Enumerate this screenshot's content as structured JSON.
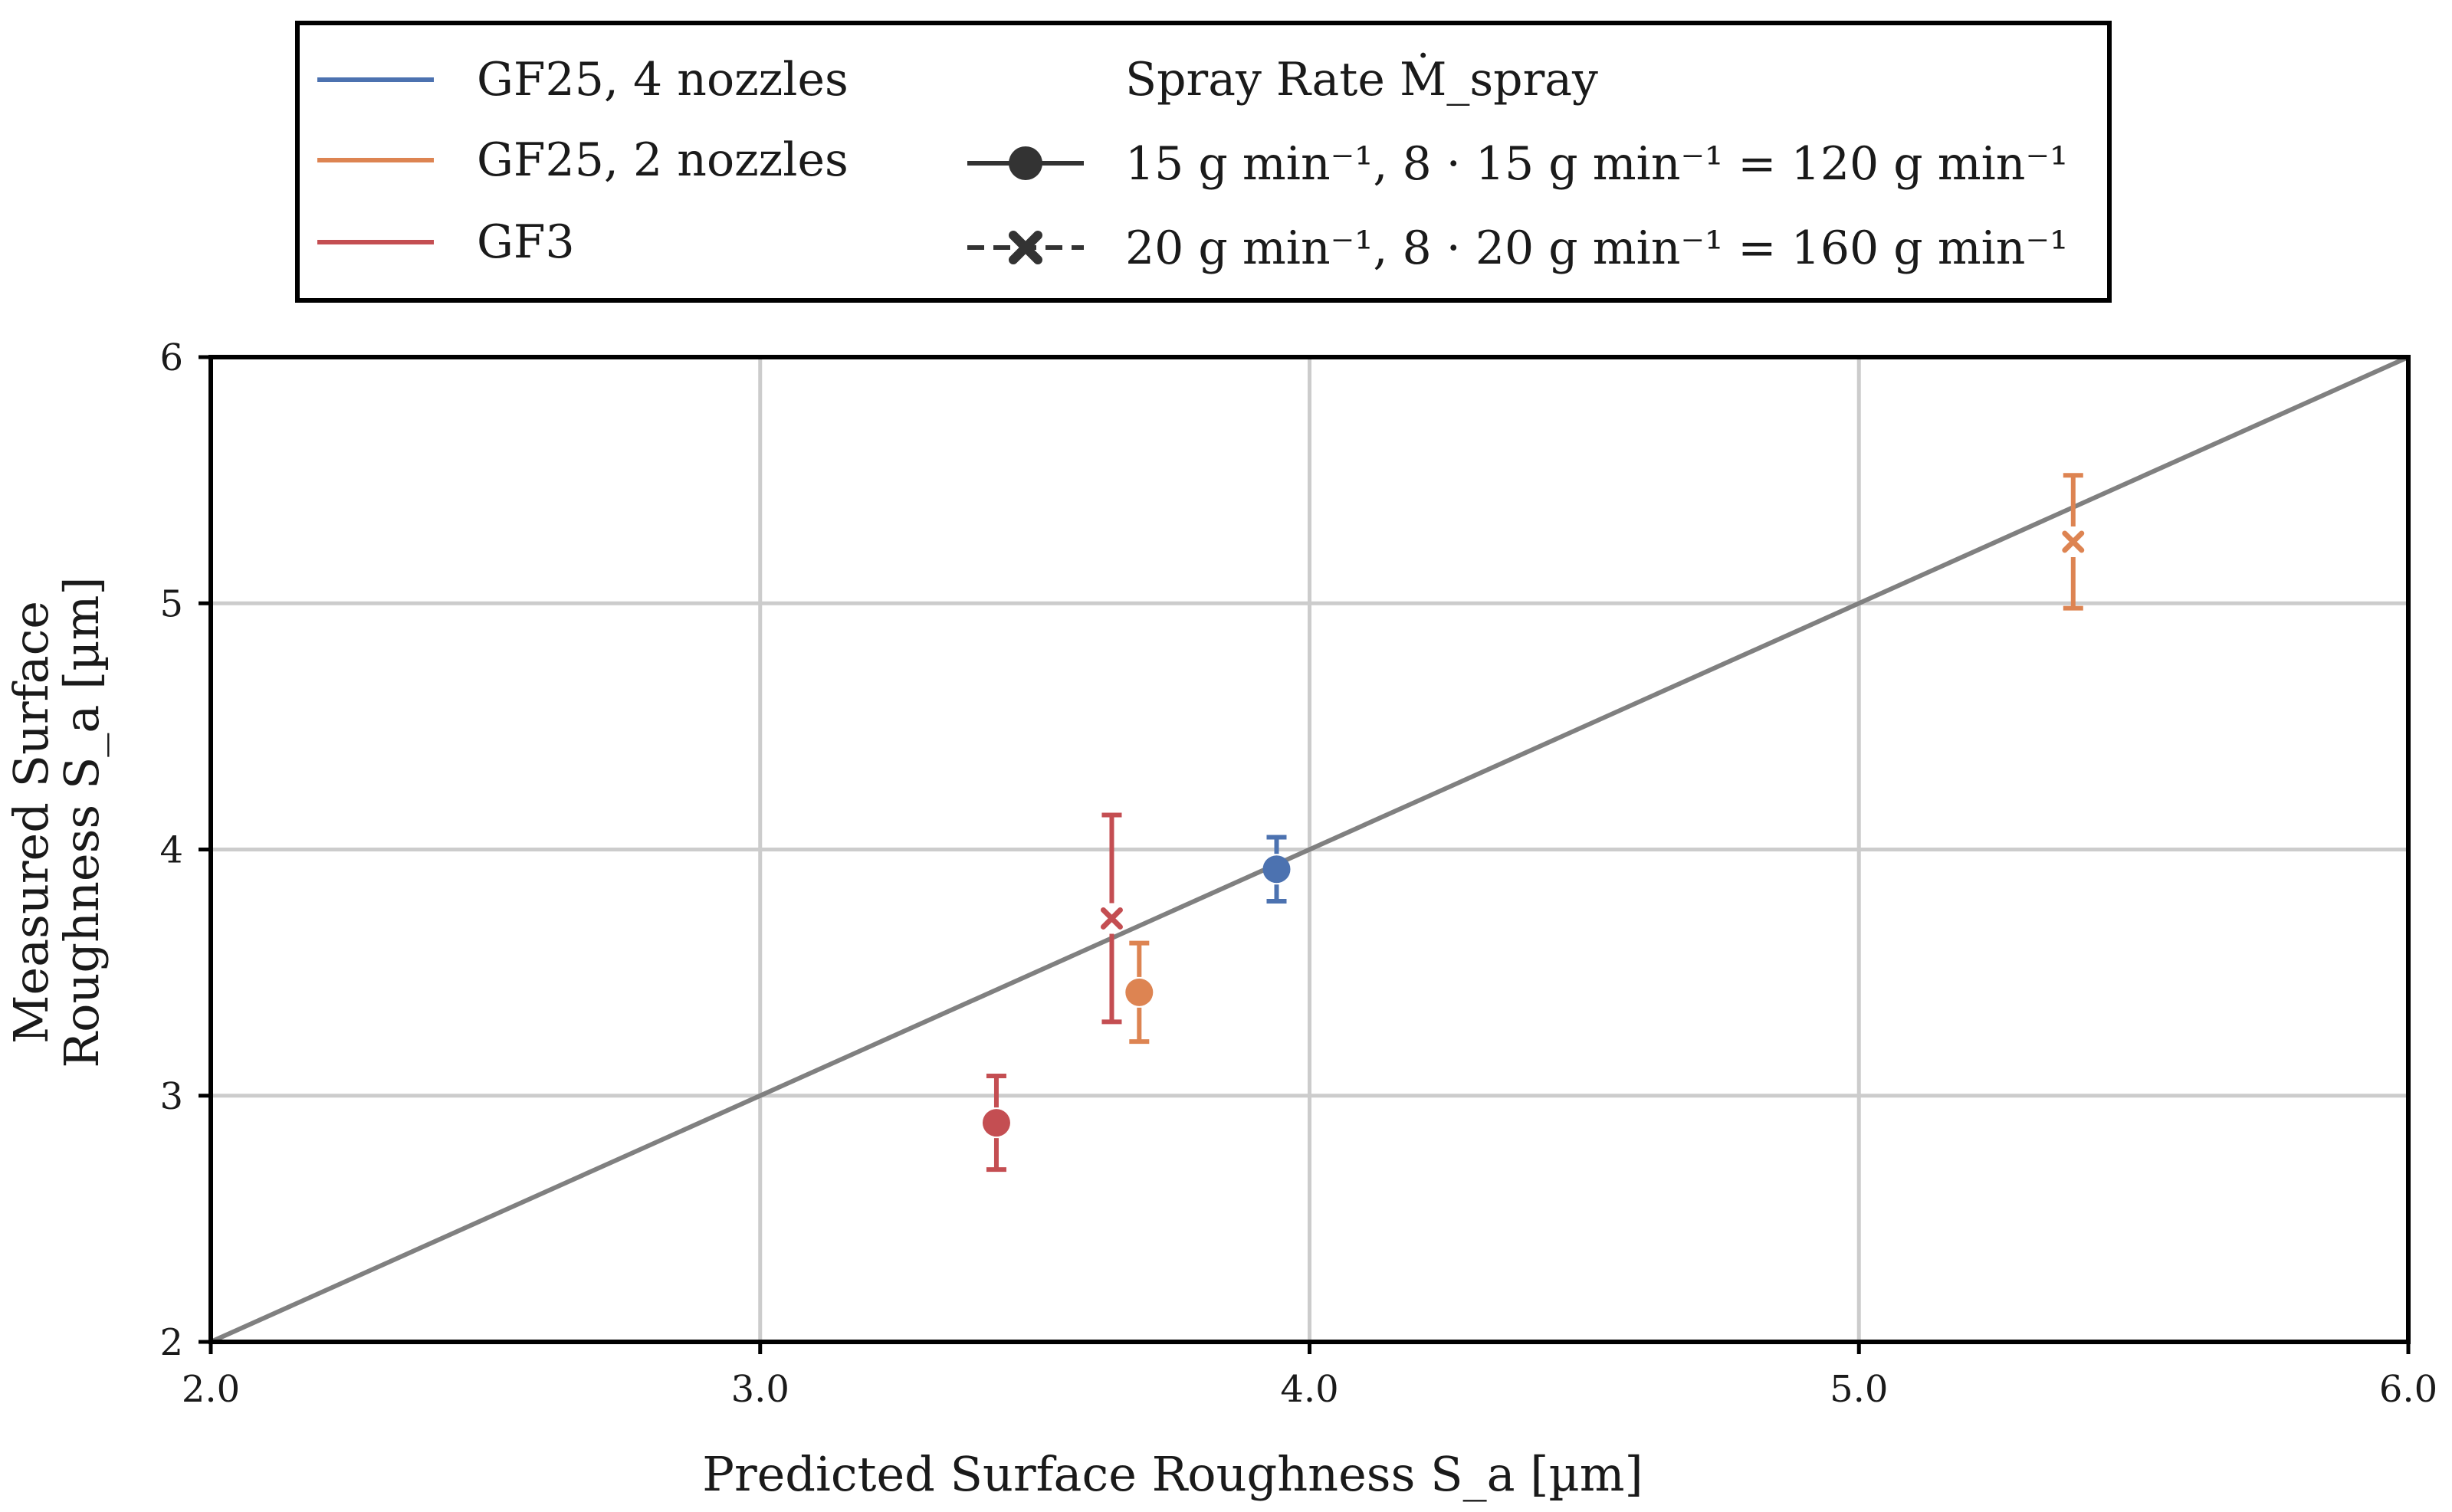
{
  "colors": {
    "gf25_4": "#4c72b0",
    "gf25_2": "#dd8452",
    "gf3": "#c44e52",
    "identity": "#808080",
    "grid": "#cccccc",
    "legend_marker": "#333333"
  },
  "chart_data": {
    "type": "scatter",
    "title": "",
    "xlabel": "Predicted Surface Roughness S_a [µm]",
    "ylabel_line1": "Measured Surface",
    "ylabel_line2": "Roughness S_a [µm]",
    "xlim": [
      2.0,
      6.0
    ],
    "ylim": [
      2,
      6
    ],
    "xticks": [
      2.0,
      3.0,
      4.0,
      5.0,
      6.0
    ],
    "xtick_labels": [
      "2.0",
      "3.0",
      "4.0",
      "5.0",
      "6.0"
    ],
    "yticks": [
      2,
      3,
      4,
      5,
      6
    ],
    "ytick_labels": [
      "2",
      "3",
      "4",
      "5",
      "6"
    ],
    "grid": true,
    "identity_line": {
      "x": [
        2.0,
        6.0
      ],
      "y": [
        2.0,
        6.0
      ]
    },
    "series": [
      {
        "name": "GF25, 4 nozzles",
        "color_key": "gf25_4",
        "points": [
          {
            "x": 3.94,
            "y": 3.92,
            "err": 0.13,
            "marker": "circle"
          }
        ]
      },
      {
        "name": "GF25, 2 nozzles",
        "color_key": "gf25_2",
        "points": [
          {
            "x": 3.69,
            "y": 3.42,
            "err": 0.2,
            "marker": "circle"
          },
          {
            "x": 5.39,
            "y": 5.25,
            "err": 0.27,
            "marker": "x"
          }
        ]
      },
      {
        "name": "GF3",
        "color_key": "gf3",
        "points": [
          {
            "x": 3.43,
            "y": 2.89,
            "err": 0.19,
            "marker": "circle"
          },
          {
            "x": 3.64,
            "y": 3.72,
            "err": 0.42,
            "marker": "x"
          }
        ]
      }
    ],
    "legend": {
      "placement": "top",
      "series_labels": [
        "GF25, 4 nozzles",
        "GF25, 2 nozzles",
        "GF3"
      ],
      "spray_title": "Spray Rate Ṁ_spray",
      "spray_entries": [
        {
          "marker": "circle",
          "linestyle": "solid",
          "label": "15 g min⁻¹, 8 · 15 g min⁻¹ = 120 g min⁻¹"
        },
        {
          "marker": "x",
          "linestyle": "dashed",
          "label": "20 g min⁻¹, 8 · 20 g min⁻¹ = 160 g min⁻¹"
        }
      ]
    }
  }
}
